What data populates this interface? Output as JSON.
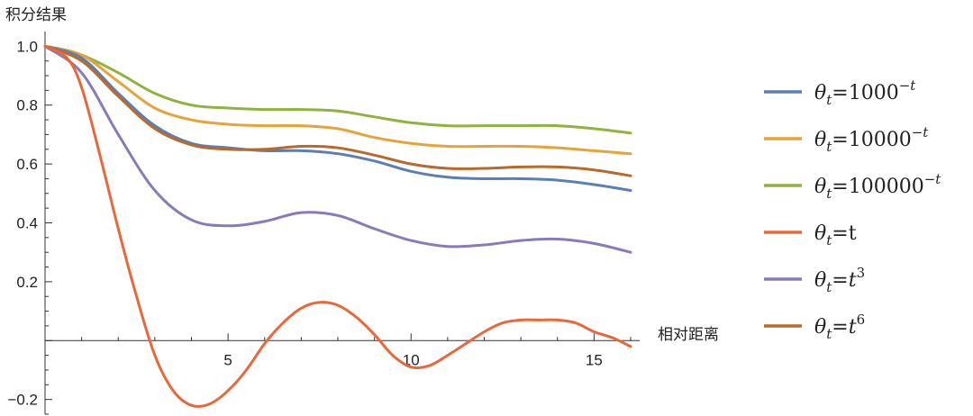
{
  "chart_data": {
    "type": "line",
    "ylabel": "积分结果",
    "xlabel": "相对距离",
    "xlim": [
      0,
      16
    ],
    "ylim": [
      -0.25,
      1.05
    ],
    "x_ticks": [
      5,
      10,
      15
    ],
    "x_minor_step": 1,
    "y_ticks": [
      {
        "value": 1.0,
        "label": "1.0"
      },
      {
        "value": 0.8,
        "label": "0.8"
      },
      {
        "value": 0.6,
        "label": "0.6"
      },
      {
        "value": 0.4,
        "label": "0.4"
      },
      {
        "value": 0.2,
        "label": "0.2"
      },
      {
        "value": -0.2,
        "label": "-0.2"
      }
    ],
    "legend_position": "right",
    "grid": false,
    "series": [
      {
        "key": "s1000",
        "legend": {
          "base": "θ",
          "sub": "t",
          "eq": "=1000",
          "sup": "−t",
          "italic_t": false
        },
        "color": "#5B7FB5",
        "points": [
          [
            0,
            1.0
          ],
          [
            1,
            0.96
          ],
          [
            2,
            0.84
          ],
          [
            3,
            0.73
          ],
          [
            4,
            0.67
          ],
          [
            5,
            0.655
          ],
          [
            6,
            0.645
          ],
          [
            7,
            0.645
          ],
          [
            8,
            0.635
          ],
          [
            9,
            0.61
          ],
          [
            10,
            0.575
          ],
          [
            11,
            0.555
          ],
          [
            12,
            0.55
          ],
          [
            13,
            0.55
          ],
          [
            14,
            0.545
          ],
          [
            15,
            0.53
          ],
          [
            16,
            0.51
          ]
        ]
      },
      {
        "key": "s10000",
        "legend": {
          "base": "θ",
          "sub": "t",
          "eq": "=10000",
          "sup": "−t",
          "italic_t": false
        },
        "color": "#E5A43A",
        "points": [
          [
            0,
            1.0
          ],
          [
            1,
            0.97
          ],
          [
            2,
            0.88
          ],
          [
            3,
            0.79
          ],
          [
            4,
            0.75
          ],
          [
            5,
            0.735
          ],
          [
            6,
            0.73
          ],
          [
            7,
            0.73
          ],
          [
            8,
            0.72
          ],
          [
            9,
            0.69
          ],
          [
            10,
            0.67
          ],
          [
            11,
            0.66
          ],
          [
            12,
            0.66
          ],
          [
            13,
            0.66
          ],
          [
            14,
            0.655
          ],
          [
            15,
            0.645
          ],
          [
            16,
            0.635
          ]
        ]
      },
      {
        "key": "s100000",
        "legend": {
          "base": "θ",
          "sub": "t",
          "eq": "=100000",
          "sup": "−t",
          "italic_t": false
        },
        "color": "#8FB33C",
        "points": [
          [
            0,
            1.0
          ],
          [
            1,
            0.97
          ],
          [
            2,
            0.91
          ],
          [
            3,
            0.84
          ],
          [
            4,
            0.8
          ],
          [
            5,
            0.79
          ],
          [
            6,
            0.785
          ],
          [
            7,
            0.785
          ],
          [
            8,
            0.78
          ],
          [
            9,
            0.76
          ],
          [
            10,
            0.74
          ],
          [
            11,
            0.73
          ],
          [
            12,
            0.73
          ],
          [
            13,
            0.73
          ],
          [
            14,
            0.73
          ],
          [
            15,
            0.72
          ],
          [
            16,
            0.705
          ]
        ]
      },
      {
        "key": "st",
        "legend": {
          "base": "θ",
          "sub": "t",
          "eq": "=t",
          "sup": "",
          "italic_t": false
        },
        "color": "#E8683C",
        "points": [
          [
            0,
            1.0
          ],
          [
            0.6,
            0.96
          ],
          [
            1,
            0.86
          ],
          [
            1.5,
            0.63
          ],
          [
            2,
            0.38
          ],
          [
            2.5,
            0.15
          ],
          [
            3,
            -0.05
          ],
          [
            3.5,
            -0.17
          ],
          [
            4,
            -0.22
          ],
          [
            4.5,
            -0.215
          ],
          [
            5,
            -0.17
          ],
          [
            5.5,
            -0.1
          ],
          [
            6,
            -0.01
          ],
          [
            6.5,
            0.06
          ],
          [
            7,
            0.11
          ],
          [
            7.5,
            0.13
          ],
          [
            8,
            0.12
          ],
          [
            8.5,
            0.08
          ],
          [
            9,
            0.02
          ],
          [
            9.5,
            -0.05
          ],
          [
            10,
            -0.09
          ],
          [
            10.5,
            -0.085
          ],
          [
            11,
            -0.05
          ],
          [
            11.5,
            -0.01
          ],
          [
            12,
            0.03
          ],
          [
            12.5,
            0.06
          ],
          [
            13,
            0.07
          ],
          [
            13.5,
            0.07
          ],
          [
            14,
            0.07
          ],
          [
            14.5,
            0.06
          ],
          [
            15,
            0.03
          ],
          [
            15.5,
            0.01
          ],
          [
            16,
            -0.02
          ]
        ]
      },
      {
        "key": "st3",
        "legend": {
          "base": "θ",
          "sub": "t",
          "eq": "=t",
          "sup": "3",
          "italic_t": true
        },
        "color": "#8A7AB8",
        "points": [
          [
            0,
            1.0
          ],
          [
            1,
            0.91
          ],
          [
            2,
            0.7
          ],
          [
            3,
            0.51
          ],
          [
            4,
            0.41
          ],
          [
            5,
            0.39
          ],
          [
            6,
            0.405
          ],
          [
            7,
            0.435
          ],
          [
            8,
            0.425
          ],
          [
            9,
            0.38
          ],
          [
            10,
            0.34
          ],
          [
            11,
            0.32
          ],
          [
            12,
            0.325
          ],
          [
            13,
            0.34
          ],
          [
            14,
            0.345
          ],
          [
            15,
            0.33
          ],
          [
            16,
            0.3
          ]
        ]
      },
      {
        "key": "st6",
        "legend": {
          "base": "θ",
          "sub": "t",
          "eq": "=t",
          "sup": "6",
          "italic_t": true
        },
        "color": "#B96A2B",
        "points": [
          [
            0,
            1.0
          ],
          [
            1,
            0.95
          ],
          [
            2,
            0.83
          ],
          [
            3,
            0.72
          ],
          [
            4,
            0.665
          ],
          [
            5,
            0.65
          ],
          [
            6,
            0.65
          ],
          [
            7,
            0.66
          ],
          [
            8,
            0.655
          ],
          [
            9,
            0.63
          ],
          [
            10,
            0.6
          ],
          [
            11,
            0.585
          ],
          [
            12,
            0.585
          ],
          [
            13,
            0.59
          ],
          [
            14,
            0.59
          ],
          [
            15,
            0.58
          ],
          [
            16,
            0.56
          ]
        ]
      }
    ]
  }
}
